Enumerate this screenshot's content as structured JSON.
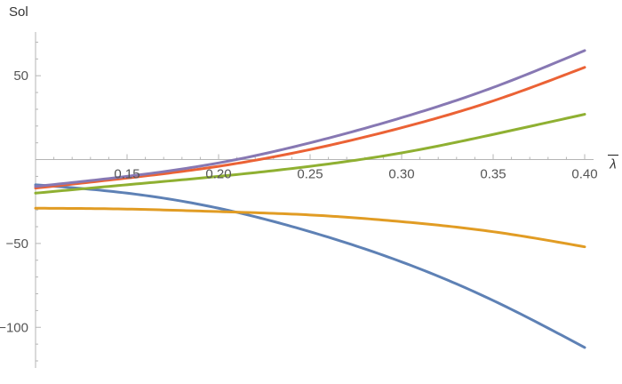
{
  "chart_data": {
    "type": "line",
    "xlabel": "λ",
    "ylabel": "Sol",
    "xlim": [
      0.1,
      0.4
    ],
    "ylim": [
      -120,
      75
    ],
    "x_ticks": [
      {
        "value": 0.15,
        "label": "0.15"
      },
      {
        "value": 0.2,
        "label": "0.20"
      },
      {
        "value": 0.25,
        "label": "0.25"
      },
      {
        "value": 0.3,
        "label": "0.30"
      },
      {
        "value": 0.35,
        "label": "0.35"
      },
      {
        "value": 0.4,
        "label": "0.40"
      }
    ],
    "y_ticks": [
      {
        "value": 50,
        "label": "50"
      },
      {
        "value": -50,
        "label": "−50"
      },
      {
        "value": -100,
        "label": "−100"
      }
    ],
    "x": [
      0.1,
      0.15,
      0.2,
      0.25,
      0.3,
      0.35,
      0.4
    ],
    "series": [
      {
        "color": "#5e81b5",
        "values": [
          -15,
          -20,
          -29,
          -43,
          -61,
          -84,
          -112
        ]
      },
      {
        "color": "#e19c24",
        "values": [
          -29,
          -29.5,
          -31,
          -33,
          -37,
          -43,
          -52
        ]
      },
      {
        "color": "#8fb032",
        "values": [
          -20,
          -15,
          -10,
          -4,
          4,
          15,
          27
        ]
      },
      {
        "color": "#eb6235",
        "values": [
          -17,
          -11,
          -4,
          6,
          19,
          35,
          55
        ]
      },
      {
        "color": "#8778b3",
        "values": [
          -16,
          -10,
          -2,
          10,
          25,
          43,
          65
        ]
      }
    ],
    "grid": false,
    "legend": "none"
  }
}
